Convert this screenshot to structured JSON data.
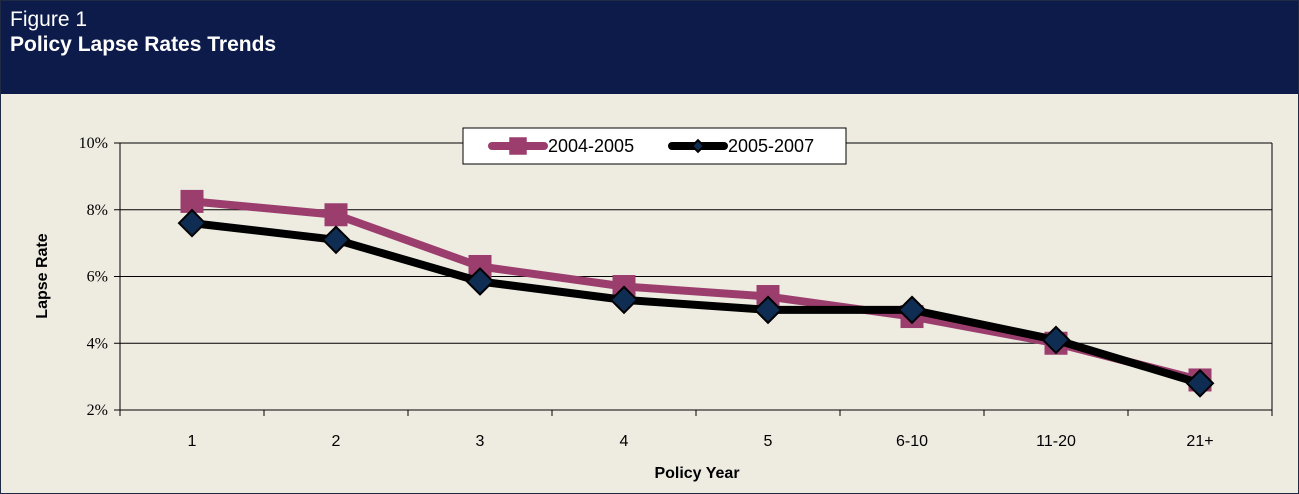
{
  "header": {
    "figure_label": "Figure 1",
    "title": "Policy Lapse Rates Trends"
  },
  "colors": {
    "header_bg": "#0c1b4a",
    "plot_bg": "#eeebe1",
    "series_2004_2005": "#9b3e6e",
    "series_2005_2007": "#000000",
    "marker_2005_2007_fill": "#0f2d52"
  },
  "chart_data": {
    "type": "line",
    "categories": [
      "1",
      "2",
      "3",
      "4",
      "5",
      "6-10",
      "11-20",
      "21+"
    ],
    "series": [
      {
        "name": "2004-2005",
        "values": [
          8.25,
          7.85,
          6.3,
          5.7,
          5.4,
          4.8,
          4.0,
          2.9
        ],
        "marker": "square"
      },
      {
        "name": "2005-2007",
        "values": [
          7.6,
          7.1,
          5.85,
          5.3,
          5.0,
          5.0,
          4.1,
          2.8
        ],
        "marker": "diamond"
      }
    ],
    "xlabel": "Policy Year",
    "ylabel": "Lapse Rate",
    "ylim": [
      2,
      10
    ],
    "yticks": [
      "2%",
      "4%",
      "6%",
      "8%",
      "10%"
    ],
    "ytick_values": [
      2,
      4,
      6,
      8,
      10
    ],
    "grid": true,
    "legend_position": "top-center"
  }
}
